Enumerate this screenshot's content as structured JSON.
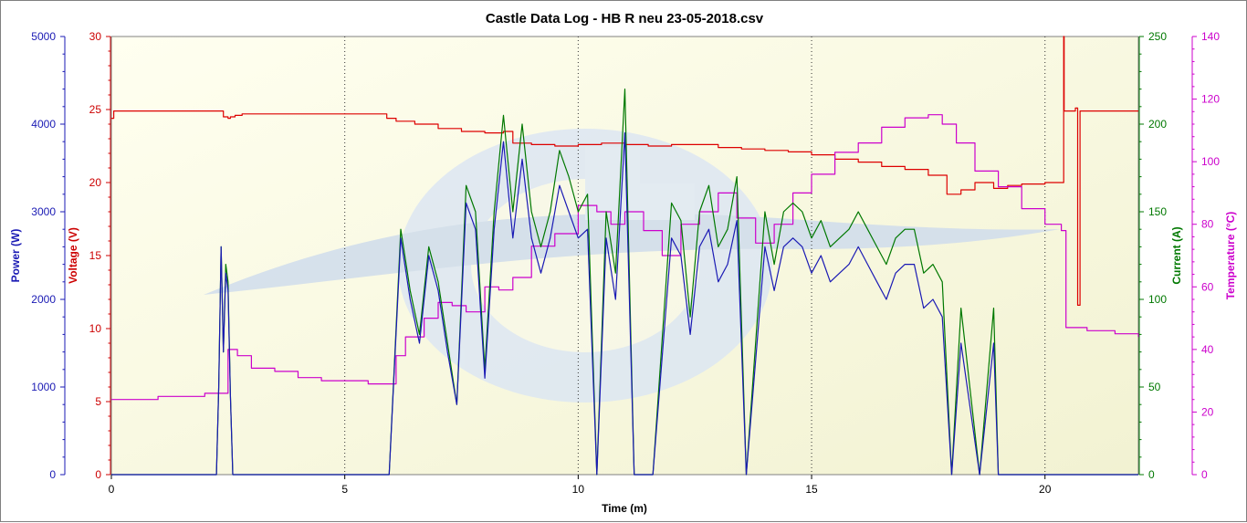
{
  "chart_data": {
    "type": "line",
    "title": "Castle Data Log - HB R neu 23-05-2018.csv",
    "xlabel": "Time (m)",
    "xlim": [
      0,
      22
    ],
    "x_ticks": [
      "0",
      "5",
      "10",
      "15",
      "20"
    ],
    "grid": "vertical dotted at 5-minute intervals",
    "legend": "none",
    "axes": [
      {
        "id": "power",
        "label": "Power (W)",
        "color": "#1a1ab4",
        "min": 0,
        "max": 5000,
        "ticks": [
          "0",
          "1000",
          "2000",
          "3000",
          "4000",
          "5000"
        ]
      },
      {
        "id": "voltage",
        "label": "Voltage (V)",
        "color": "#cc0000",
        "min": 0,
        "max": 30,
        "ticks": [
          "0",
          "5",
          "10",
          "15",
          "20",
          "25",
          "30"
        ]
      },
      {
        "id": "current",
        "label": "Current (A)",
        "color": "#007800",
        "min": 0,
        "max": 250,
        "ticks": [
          "0",
          "50",
          "100",
          "150",
          "200",
          "250"
        ]
      },
      {
        "id": "temperature",
        "label": "Temperature (°C)",
        "color": "#cc00cc",
        "min": 0,
        "max": 140,
        "ticks": [
          "0",
          "20",
          "40",
          "60",
          "80",
          "100",
          "120",
          "140"
        ]
      }
    ],
    "series": [
      {
        "name": "Voltage",
        "axis": "voltage",
        "color": "#dd0000",
        "x": [
          0,
          0.05,
          2.2,
          2.3,
          2.4,
          2.5,
          2.55,
          2.65,
          2.8,
          3.5,
          4.5,
          5.8,
          5.9,
          6.1,
          6.5,
          7,
          7.5,
          8,
          8.4,
          8.6,
          9,
          9.5,
          10,
          10.5,
          11,
          11.5,
          12,
          12.5,
          13,
          13.5,
          14,
          14.5,
          15,
          15.5,
          16,
          16.5,
          17,
          17.5,
          17.9,
          18.2,
          18.5,
          18.9,
          19.2,
          19.5,
          20,
          20.35,
          20.4,
          20.41,
          20.6,
          20.65,
          20.7,
          20.75,
          20.9,
          21.2,
          21.6,
          22
        ],
        "y": [
          24.4,
          24.9,
          24.9,
          24.9,
          24.5,
          24.4,
          24.5,
          24.6,
          24.7,
          24.7,
          24.7,
          24.7,
          24.4,
          24.2,
          24.0,
          23.7,
          23.5,
          23.4,
          23.5,
          22.7,
          22.6,
          22.5,
          22.6,
          22.7,
          22.6,
          22.5,
          22.6,
          22.6,
          22.4,
          22.3,
          22.2,
          22.1,
          21.9,
          21.6,
          21.4,
          21.1,
          20.9,
          20.5,
          19.2,
          19.5,
          20.0,
          19.6,
          19.8,
          19.9,
          20.0,
          20.0,
          30.0,
          24.9,
          24.9,
          25.1,
          11.6,
          24.9,
          24.9,
          24.9,
          24.9,
          24.9
        ]
      },
      {
        "name": "Temperature",
        "axis": "temperature",
        "color": "#cc00cc",
        "x": [
          0,
          1,
          2,
          2.3,
          2.5,
          2.7,
          3,
          3.5,
          4,
          4.5,
          5,
          5.5,
          5.9,
          6.1,
          6.3,
          6.7,
          7,
          7.3,
          7.6,
          8,
          8.3,
          8.6,
          9,
          9.5,
          10,
          10.4,
          10.7,
          11,
          11.4,
          11.8,
          12.2,
          12.6,
          13,
          13.4,
          13.8,
          14.2,
          14.6,
          15,
          15.5,
          16,
          16.5,
          17,
          17.5,
          17.8,
          18.1,
          18.5,
          19,
          19.5,
          20,
          20.35,
          20.45,
          20.9,
          21.5,
          22
        ],
        "y": [
          24,
          25,
          26,
          26,
          40,
          38,
          34,
          33,
          31,
          30,
          30,
          29,
          29,
          38,
          44,
          50,
          55,
          54,
          52,
          60,
          59,
          63,
          73,
          77,
          86,
          84,
          80,
          84,
          78,
          70,
          80,
          84,
          90,
          82,
          74,
          80,
          90,
          96,
          103,
          106,
          111,
          114,
          115,
          112,
          106,
          97,
          92,
          85,
          80,
          78,
          47,
          46,
          45,
          44
        ]
      },
      {
        "name": "Current",
        "axis": "current",
        "color": "#007800",
        "x": [
          0,
          2.25,
          2.3,
          2.35,
          2.4,
          2.45,
          2.5,
          2.55,
          2.6,
          5.95,
          6.2,
          6.4,
          6.6,
          6.8,
          7.0,
          7.2,
          7.4,
          7.6,
          7.8,
          8.0,
          8.2,
          8.4,
          8.6,
          8.8,
          9.0,
          9.2,
          9.4,
          9.6,
          9.8,
          10.0,
          10.2,
          10.4,
          10.6,
          10.8,
          11.0,
          11.2,
          11.6,
          12.0,
          12.2,
          12.4,
          12.6,
          12.8,
          13.0,
          13.2,
          13.4,
          13.6,
          14.0,
          14.2,
          14.4,
          14.6,
          14.8,
          15.0,
          15.2,
          15.4,
          15.6,
          15.8,
          16.0,
          16.2,
          16.4,
          16.6,
          16.8,
          17.0,
          17.2,
          17.4,
          17.6,
          17.8,
          18.0,
          18.2,
          18.6,
          18.9,
          19.0,
          20.4,
          22
        ],
        "y": [
          0,
          0,
          50,
          130,
          70,
          120,
          110,
          45,
          0,
          0,
          140,
          105,
          80,
          130,
          110,
          75,
          40,
          165,
          150,
          60,
          150,
          205,
          150,
          200,
          150,
          130,
          150,
          185,
          170,
          150,
          160,
          0,
          150,
          115,
          220,
          0,
          0,
          155,
          145,
          90,
          150,
          165,
          130,
          140,
          170,
          0,
          150,
          120,
          150,
          155,
          150,
          135,
          145,
          130,
          135,
          140,
          150,
          140,
          130,
          120,
          135,
          140,
          140,
          115,
          120,
          110,
          0,
          95,
          0,
          95,
          0,
          0,
          0
        ]
      },
      {
        "name": "Power",
        "axis": "power",
        "color": "#1a1ab4",
        "x": [
          0,
          2.25,
          2.3,
          2.35,
          2.4,
          2.45,
          2.5,
          2.55,
          2.6,
          5.95,
          6.2,
          6.4,
          6.6,
          6.8,
          7.0,
          7.2,
          7.4,
          7.6,
          7.8,
          8.0,
          8.2,
          8.4,
          8.6,
          8.8,
          9.0,
          9.2,
          9.4,
          9.6,
          9.8,
          10.0,
          10.2,
          10.4,
          10.6,
          10.8,
          11.0,
          11.2,
          11.6,
          12.0,
          12.2,
          12.4,
          12.6,
          12.8,
          13.0,
          13.2,
          13.4,
          13.6,
          14.0,
          14.2,
          14.4,
          14.6,
          14.8,
          15.0,
          15.2,
          15.4,
          15.6,
          15.8,
          16.0,
          16.2,
          16.4,
          16.6,
          16.8,
          17.0,
          17.2,
          17.4,
          17.6,
          17.8,
          18.0,
          18.2,
          18.6,
          18.9,
          19.0,
          20.4,
          22
        ],
        "y": [
          0,
          0,
          1000,
          2600,
          1400,
          2300,
          2100,
          900,
          0,
          0,
          2700,
          2000,
          1500,
          2500,
          2100,
          1400,
          800,
          3100,
          2800,
          1100,
          2800,
          3800,
          2700,
          3600,
          2700,
          2300,
          2700,
          3300,
          3000,
          2700,
          2800,
          0,
          2700,
          2000,
          3900,
          0,
          0,
          2700,
          2500,
          1600,
          2600,
          2800,
          2200,
          2400,
          2900,
          0,
          2600,
          2100,
          2600,
          2700,
          2600,
          2300,
          2500,
          2200,
          2300,
          2400,
          2600,
          2400,
          2200,
          2000,
          2300,
          2400,
          2400,
          1900,
          2000,
          1800,
          0,
          1500,
          0,
          1500,
          0,
          0,
          0
        ]
      }
    ]
  }
}
